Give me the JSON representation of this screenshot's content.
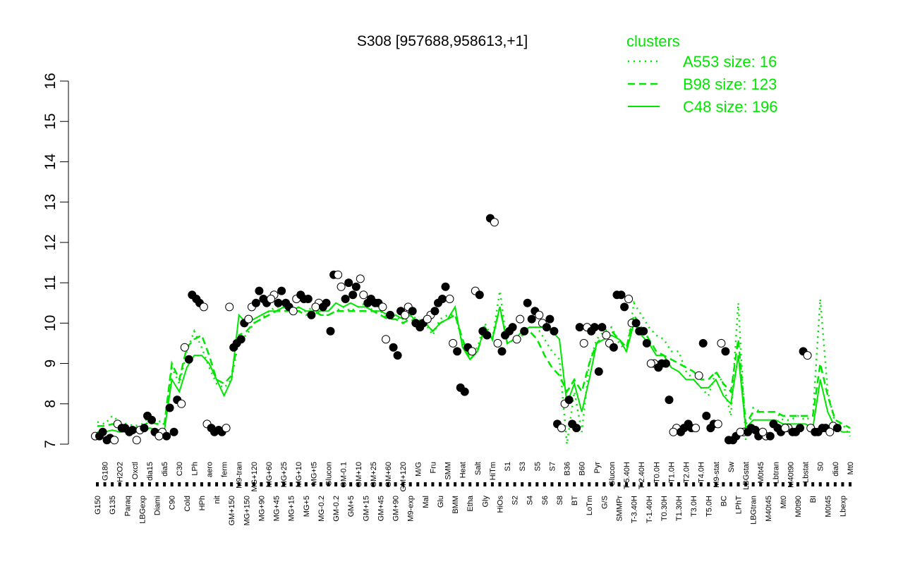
{
  "chart_data": {
    "type": "line",
    "title": "S308 [957688,958613,+1]",
    "xlabel": "",
    "ylabel": "",
    "ylim": [
      7,
      16
    ],
    "yticks": [
      7,
      8,
      9,
      10,
      11,
      12,
      13,
      14,
      15,
      16
    ],
    "grid": false,
    "legend": {
      "title": "clusters",
      "placement": "top-right",
      "entries": [
        {
          "label": "A553 size: 16",
          "style": "dotted"
        },
        {
          "label": "B98 size: 123",
          "style": "dashed"
        },
        {
          "label": "C48 size: 196",
          "style": "solid"
        }
      ]
    },
    "colors": {
      "cluster_lines": "#00e600",
      "axis": "#000000",
      "point_open": "#ffffff",
      "point_filled": "#000000"
    },
    "x_tick_labels": [
      "G150",
      "G180",
      "G135",
      "H2O2",
      "Paraq",
      "Oxctl",
      "LBGexp",
      "dia15",
      "Diami",
      "dia5",
      "C90",
      "C30",
      "Cold",
      "LPh",
      "HPh",
      "aero",
      "nit",
      "ferm",
      "GM+150",
      "M9-tran",
      "MG+150",
      "MG+120",
      "MG+90",
      "MG+60",
      "MG+45",
      "MG+25",
      "MG+15",
      "MG+10",
      "MG+5",
      "MG+t5",
      "MG-0.2",
      "Glucon",
      "GM-0.2",
      "GM-0.1",
      "GM+5",
      "GM+10",
      "GM+15",
      "GM+25",
      "GM+45",
      "GM+60",
      "GM+90",
      "GM+120",
      "M9-exp",
      "M/G",
      "Mal",
      "Fru",
      "Glu",
      "SMM",
      "BMM",
      "Heat",
      "Etha",
      "Salt",
      "Gly",
      "HiTm",
      "HiOs",
      "S1",
      "S2",
      "S3",
      "S4",
      "S5",
      "S6",
      "S7",
      "S8",
      "B36",
      "BT",
      "B60",
      "LoTm",
      "Pyr",
      "G/S",
      "Glucon",
      "SMMPr",
      "T-5.40H",
      "T-3.40H",
      "T-2.40H",
      "T-1.40H",
      "T0.0H",
      "T0.30H",
      "T1.0H",
      "T1.30H",
      "T2.0H",
      "T3.0H",
      "T4.0H",
      "T5.0H",
      "M9-stat",
      "BC",
      "Sw",
      "LPhT",
      "LBGstat",
      "LBGtran",
      "M0t45",
      "M40t45",
      "Lbtran",
      "Mt0",
      "M40t90",
      "M0t90",
      "Lbstat",
      "BI",
      "S0",
      "M0t45",
      "dia0",
      "Lbexp",
      "Mt0"
    ],
    "series": [
      {
        "name": "A553 size: 16",
        "style": "dotted",
        "values": [
          7.55,
          7.5,
          7.7,
          7.55,
          7.5,
          7.45,
          7.5,
          7.7,
          7.6,
          7.5,
          8.9,
          8.5,
          9.3,
          9.8,
          9.4,
          8.9,
          8.5,
          8.4,
          8.6,
          9.6,
          9.7,
          10.0,
          10.1,
          10.3,
          10.4,
          10.4,
          10.3,
          10.3,
          10.3,
          10.4,
          10.2,
          10.2,
          10.3,
          10.4,
          10.3,
          10.4,
          10.5,
          10.3,
          10.3,
          10.1,
          10.2,
          10.0,
          10.2,
          10.1,
          10.0,
          9.7,
          10.1,
          10.2,
          10.2,
          9.5,
          9.2,
          9.4,
          10.0,
          9.6,
          10.8,
          9.5,
          9.6,
          9.7,
          9.9,
          9.9,
          9.6,
          9.3,
          9.1,
          7.0,
          8.3,
          7.3,
          9.0,
          9.6,
          9.8,
          9.9,
          9.5,
          9.3,
          10.5,
          10.2,
          9.9,
          9.7,
          9.6,
          9.3,
          9.3,
          8.8,
          8.6,
          8.4,
          8.2,
          8.8,
          8.5,
          7.7,
          10.5,
          7.1,
          7.9,
          7.8,
          7.8,
          7.8,
          7.6,
          7.6,
          7.7,
          7.6,
          7.7,
          10.6,
          8.3,
          7.5,
          7.5,
          7.2
        ]
      },
      {
        "name": "B98 size: 123",
        "style": "dashed",
        "values": [
          7.45,
          7.45,
          7.5,
          7.45,
          7.4,
          7.4,
          7.45,
          7.55,
          7.5,
          7.5,
          9.0,
          8.6,
          9.4,
          9.6,
          9.7,
          9.2,
          8.6,
          8.5,
          8.7,
          9.7,
          9.8,
          10.0,
          10.1,
          10.2,
          10.3,
          10.3,
          10.3,
          10.3,
          10.2,
          10.3,
          10.2,
          10.2,
          10.3,
          10.3,
          10.3,
          10.3,
          10.3,
          10.3,
          10.2,
          10.1,
          10.1,
          10.0,
          10.1,
          10.0,
          10.0,
          9.8,
          10.0,
          10.1,
          10.2,
          9.6,
          9.1,
          9.3,
          9.9,
          9.6,
          10.4,
          9.5,
          9.6,
          9.7,
          9.8,
          9.6,
          9.2,
          8.9,
          8.7,
          8.3,
          8.6,
          8.3,
          9.0,
          9.5,
          9.7,
          9.8,
          9.6,
          9.4,
          10.2,
          9.9,
          9.6,
          9.3,
          9.2,
          9.1,
          9.0,
          8.9,
          8.8,
          8.6,
          8.6,
          8.8,
          8.5,
          8.3,
          9.6,
          7.5,
          7.8,
          7.8,
          7.8,
          7.8,
          7.7,
          7.7,
          7.7,
          7.7,
          7.7,
          9.0,
          8.2,
          7.6,
          7.5,
          7.4
        ]
      },
      {
        "name": "C48 size: 196",
        "style": "solid",
        "values": [
          7.3,
          7.3,
          7.35,
          7.3,
          7.3,
          7.3,
          7.3,
          7.4,
          7.35,
          7.35,
          8.6,
          8.3,
          8.9,
          9.2,
          9.2,
          9.0,
          8.6,
          8.2,
          8.6,
          10.2,
          10.0,
          10.1,
          10.2,
          10.3,
          10.3,
          10.4,
          10.3,
          10.4,
          10.3,
          10.3,
          10.3,
          10.3,
          10.5,
          10.4,
          10.5,
          10.4,
          10.4,
          10.3,
          10.3,
          10.2,
          10.2,
          10.1,
          10.2,
          10.0,
          10.0,
          9.8,
          10.0,
          10.1,
          10.4,
          9.4,
          9.1,
          9.3,
          9.9,
          9.6,
          10.4,
          9.5,
          9.6,
          9.8,
          9.9,
          9.9,
          9.9,
          9.8,
          9.6,
          8.0,
          8.5,
          7.8,
          8.6,
          9.5,
          9.6,
          9.7,
          9.6,
          9.3,
          10.0,
          9.7,
          9.5,
          9.2,
          9.2,
          8.9,
          8.8,
          8.6,
          8.6,
          8.4,
          8.4,
          8.6,
          8.2,
          8.0,
          9.2,
          7.4,
          7.6,
          7.6,
          7.6,
          7.6,
          7.5,
          7.5,
          7.5,
          7.5,
          7.4,
          8.6,
          7.8,
          7.4,
          7.3,
          7.3
        ]
      }
    ],
    "points": [
      [
        7.2,
        7.3,
        7.15,
        7.5,
        7.4,
        7.35,
        7.35,
        7.7,
        7.3,
        7.3,
        7.9,
        8.1,
        9.4,
        10.7,
        10.5,
        7.5,
        7.3,
        7.3,
        10.4,
        9.5,
        10.0,
        10.4,
        10.8,
        10.5,
        10.7,
        10.8,
        10.4,
        10.6,
        10.6,
        10.2,
        10.5,
        10.5,
        11.2,
        10.9,
        11.0,
        10.9,
        10.7,
        10.6,
        10.5,
        9.6,
        9.4,
        10.3,
        10.4,
        10.0,
        10.0,
        10.2,
        10.5,
        10.9,
        9.5,
        8.4,
        9.4,
        10.8,
        9.8,
        12.6,
        9.5,
        9.7,
        9.9,
        10.1,
        10.5,
        10.3,
        10.0,
        10.1,
        7.5,
        8.0,
        7.5,
        9.9,
        9.9,
        9.9,
        9.9,
        9.5,
        10.7,
        10.4,
        10.0,
        9.8,
        9.5,
        9.0,
        9.0,
        8.1,
        7.4,
        7.4,
        7.4,
        8.7,
        7.7,
        7.5,
        9.5,
        7.1,
        7.2,
        7.3,
        7.4,
        7.2,
        7.2,
        7.5,
        7.3,
        7.4,
        7.3,
        9.3,
        7.4,
        7.3,
        7.4,
        7.45
      ],
      [
        7.2,
        7.1,
        7.1,
        7.4,
        7.3,
        7.1,
        7.4,
        7.6,
        7.2,
        7.2,
        7.3,
        8.0,
        9.1,
        10.6,
        10.4,
        7.4,
        7.35,
        7.4,
        9.4,
        9.6,
        10.1,
        10.5,
        10.6,
        10.6,
        10.5,
        10.5,
        10.3,
        10.7,
        10.6,
        10.4,
        10.4,
        9.8,
        11.2,
        10.6,
        10.7,
        11.1,
        10.5,
        10.5,
        10.4,
        10.2,
        9.2,
        10.2,
        10.3,
        9.9,
        10.1,
        10.3,
        10.6,
        10.6,
        9.3,
        8.3,
        9.3,
        10.7,
        9.7,
        12.5,
        9.3,
        9.8,
        9.6,
        9.8,
        10.1,
        10.2,
        9.9,
        9.8,
        7.4,
        8.1,
        7.4,
        9.5,
        9.8,
        8.8,
        9.7,
        9.4,
        10.7,
        10.6,
        10.0,
        9.8,
        9.0,
        8.9,
        9.0,
        7.3,
        7.3,
        7.5,
        7.4,
        9.5,
        7.4,
        7.5,
        9.3,
        7.1,
        7.3,
        7.3,
        7.35,
        7.3,
        7.2,
        7.4,
        7.4,
        7.3,
        7.4,
        9.2,
        7.3,
        7.4,
        7.3,
        7.4
      ]
    ]
  }
}
